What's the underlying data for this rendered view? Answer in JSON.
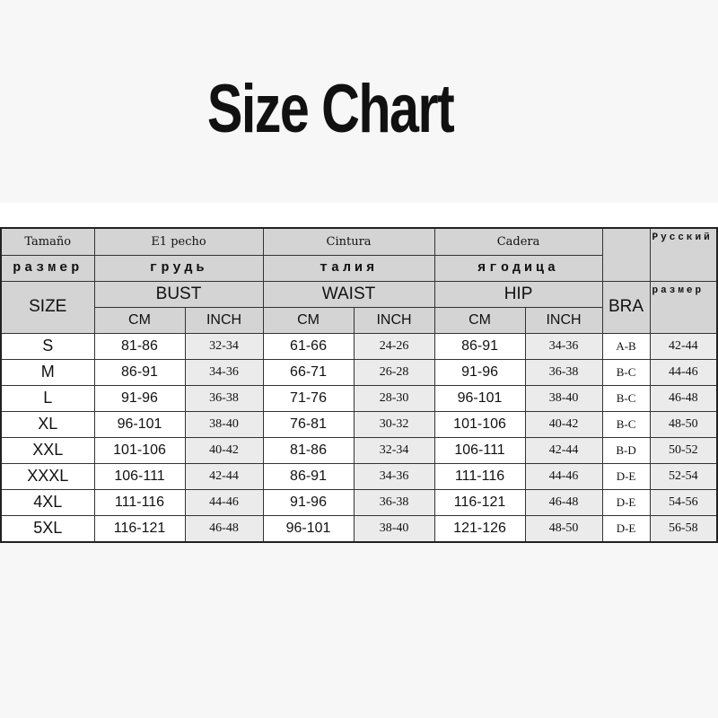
{
  "title": "Size Chart",
  "header": {
    "row1": {
      "size": "Tamaño",
      "bust": "E1 pecho",
      "waist": "Cintura",
      "hip": "Cadera",
      "rus": "Русский"
    },
    "row2": {
      "size": "размер",
      "bust": "грудь",
      "waist": "талия",
      "hip": "ягодица"
    },
    "row3": {
      "size": "SIZE",
      "bust": "BUST",
      "waist": "WAIST",
      "hip": "HIP",
      "bra": "BRA",
      "rus": "размер"
    },
    "units": {
      "cm": "CM",
      "inch": "INCH"
    }
  },
  "rows": [
    [
      "S",
      "81-86",
      "32-34",
      "61-66",
      "24-26",
      "86-91",
      "34-36",
      "A-B",
      "42-44"
    ],
    [
      "M",
      "86-91",
      "34-36",
      "66-71",
      "26-28",
      "91-96",
      "36-38",
      "B-C",
      "44-46"
    ],
    [
      "L",
      "91-96",
      "36-38",
      "71-76",
      "28-30",
      "96-101",
      "38-40",
      "B-C",
      "46-48"
    ],
    [
      "XL",
      "96-101",
      "38-40",
      "76-81",
      "30-32",
      "101-106",
      "40-42",
      "B-C",
      "48-50"
    ],
    [
      "XXL",
      "101-106",
      "40-42",
      "81-86",
      "32-34",
      "106-111",
      "42-44",
      "B-D",
      "50-52"
    ],
    [
      "XXXL",
      "106-111",
      "42-44",
      "86-91",
      "34-36",
      "111-116",
      "44-46",
      "D-E",
      "52-54"
    ],
    [
      "4XL",
      "111-116",
      "44-46",
      "91-96",
      "36-38",
      "116-121",
      "46-48",
      "D-E",
      "54-56"
    ],
    [
      "5XL",
      "116-121",
      "46-48",
      "96-101",
      "38-40",
      "121-126",
      "48-50",
      "D-E",
      "56-58"
    ]
  ]
}
